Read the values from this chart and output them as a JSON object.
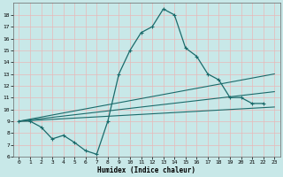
{
  "xlabel": "Humidex (Indice chaleur)",
  "xlim": [
    -0.5,
    23.5
  ],
  "ylim": [
    6,
    19
  ],
  "yticks": [
    6,
    7,
    8,
    9,
    10,
    11,
    12,
    13,
    14,
    15,
    16,
    17,
    18
  ],
  "xticks": [
    0,
    1,
    2,
    3,
    4,
    5,
    6,
    7,
    8,
    9,
    10,
    11,
    12,
    13,
    14,
    15,
    16,
    17,
    18,
    19,
    20,
    21,
    22,
    23
  ],
  "bg_color": "#c8e8e8",
  "line_color": "#1a6b6b",
  "grid_color": "#b0d8d8",
  "main_x": [
    0,
    1,
    2,
    3,
    4,
    5,
    6,
    7,
    8,
    9,
    10,
    11,
    12,
    13,
    14,
    15,
    16,
    17,
    18,
    19,
    20,
    21,
    22
  ],
  "main_y": [
    9,
    9,
    8.5,
    7.5,
    7.8,
    7.2,
    6.5,
    6.2,
    9.0,
    13.0,
    15.0,
    16.5,
    17.0,
    18.5,
    18.0,
    15.2,
    14.5,
    13.0,
    12.5,
    11.0,
    11.0,
    10.5,
    10.5
  ],
  "trend1_x": [
    0,
    23
  ],
  "trend1_y": [
    9.0,
    10.2
  ],
  "trend2_x": [
    0,
    23
  ],
  "trend2_y": [
    9.0,
    11.5
  ],
  "trend3_x": [
    0,
    23
  ],
  "trend3_y": [
    9.0,
    13.0
  ]
}
